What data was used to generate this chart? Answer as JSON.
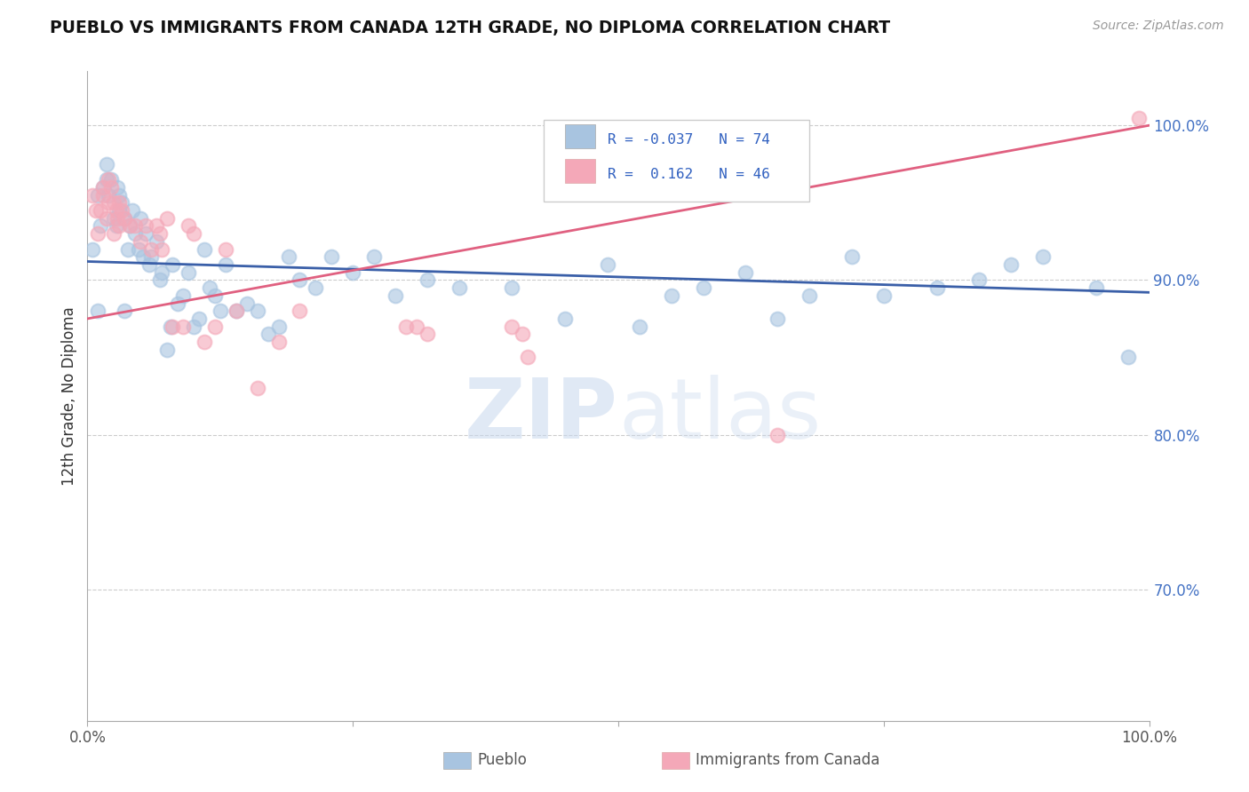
{
  "title": "PUEBLO VS IMMIGRANTS FROM CANADA 12TH GRADE, NO DIPLOMA CORRELATION CHART",
  "source": "Source: ZipAtlas.com",
  "ylabel": "12th Grade, No Diploma",
  "legend_labels": [
    "Pueblo",
    "Immigrants from Canada"
  ],
  "r_pueblo": -0.037,
  "n_pueblo": 74,
  "r_canada": 0.162,
  "n_canada": 46,
  "pueblo_color": "#a8c4e0",
  "canada_color": "#f4a8b8",
  "pueblo_line_color": "#3a5fa8",
  "canada_line_color": "#e06080",
  "watermark_zip": "ZIP",
  "watermark_atlas": "atlas",
  "xlim": [
    0.0,
    1.0
  ],
  "ylim": [
    0.615,
    1.035
  ],
  "ytick_vals": [
    0.7,
    0.8,
    0.9,
    1.0
  ],
  "ytick_labels": [
    "70.0%",
    "80.0%",
    "90.0%",
    "100.0%"
  ],
  "pueblo_x": [
    0.005,
    0.01,
    0.01,
    0.012,
    0.015,
    0.018,
    0.018,
    0.02,
    0.022,
    0.025,
    0.027,
    0.028,
    0.03,
    0.03,
    0.032,
    0.035,
    0.035,
    0.038,
    0.04,
    0.042,
    0.045,
    0.048,
    0.05,
    0.052,
    0.055,
    0.058,
    0.06,
    0.065,
    0.068,
    0.07,
    0.075,
    0.078,
    0.08,
    0.085,
    0.09,
    0.095,
    0.1,
    0.105,
    0.11,
    0.115,
    0.12,
    0.125,
    0.13,
    0.14,
    0.15,
    0.16,
    0.17,
    0.18,
    0.19,
    0.2,
    0.215,
    0.23,
    0.25,
    0.27,
    0.29,
    0.32,
    0.35,
    0.4,
    0.45,
    0.49,
    0.52,
    0.55,
    0.58,
    0.62,
    0.65,
    0.68,
    0.72,
    0.75,
    0.8,
    0.84,
    0.87,
    0.9,
    0.95,
    0.98
  ],
  "pueblo_y": [
    0.92,
    0.88,
    0.955,
    0.935,
    0.96,
    0.965,
    0.975,
    0.955,
    0.965,
    0.94,
    0.935,
    0.96,
    0.955,
    0.945,
    0.95,
    0.88,
    0.94,
    0.92,
    0.935,
    0.945,
    0.93,
    0.92,
    0.94,
    0.915,
    0.93,
    0.91,
    0.915,
    0.925,
    0.9,
    0.905,
    0.855,
    0.87,
    0.91,
    0.885,
    0.89,
    0.905,
    0.87,
    0.875,
    0.92,
    0.895,
    0.89,
    0.88,
    0.91,
    0.88,
    0.885,
    0.88,
    0.865,
    0.87,
    0.915,
    0.9,
    0.895,
    0.915,
    0.905,
    0.915,
    0.89,
    0.9,
    0.895,
    0.895,
    0.875,
    0.91,
    0.87,
    0.89,
    0.895,
    0.905,
    0.875,
    0.89,
    0.915,
    0.89,
    0.895,
    0.9,
    0.91,
    0.915,
    0.895,
    0.85
  ],
  "canada_x": [
    0.005,
    0.008,
    0.01,
    0.012,
    0.015,
    0.015,
    0.018,
    0.02,
    0.02,
    0.022,
    0.025,
    0.025,
    0.027,
    0.028,
    0.03,
    0.03,
    0.032,
    0.035,
    0.04,
    0.045,
    0.05,
    0.055,
    0.06,
    0.065,
    0.068,
    0.07,
    0.075,
    0.08,
    0.09,
    0.095,
    0.1,
    0.11,
    0.12,
    0.13,
    0.14,
    0.16,
    0.18,
    0.2,
    0.3,
    0.31,
    0.32,
    0.4,
    0.41,
    0.415,
    0.65,
    0.99
  ],
  "canada_y": [
    0.955,
    0.945,
    0.93,
    0.945,
    0.955,
    0.96,
    0.94,
    0.95,
    0.965,
    0.96,
    0.95,
    0.93,
    0.945,
    0.94,
    0.95,
    0.935,
    0.945,
    0.94,
    0.935,
    0.935,
    0.925,
    0.935,
    0.92,
    0.935,
    0.93,
    0.92,
    0.94,
    0.87,
    0.87,
    0.935,
    0.93,
    0.86,
    0.87,
    0.92,
    0.88,
    0.83,
    0.86,
    0.88,
    0.87,
    0.87,
    0.865,
    0.87,
    0.865,
    0.85,
    0.8,
    1.005
  ],
  "pueblo_trend_x": [
    0.0,
    1.0
  ],
  "pueblo_trend_y": [
    0.912,
    0.892
  ],
  "canada_trend_x": [
    0.0,
    1.0
  ],
  "canada_trend_y": [
    0.875,
    1.0
  ]
}
